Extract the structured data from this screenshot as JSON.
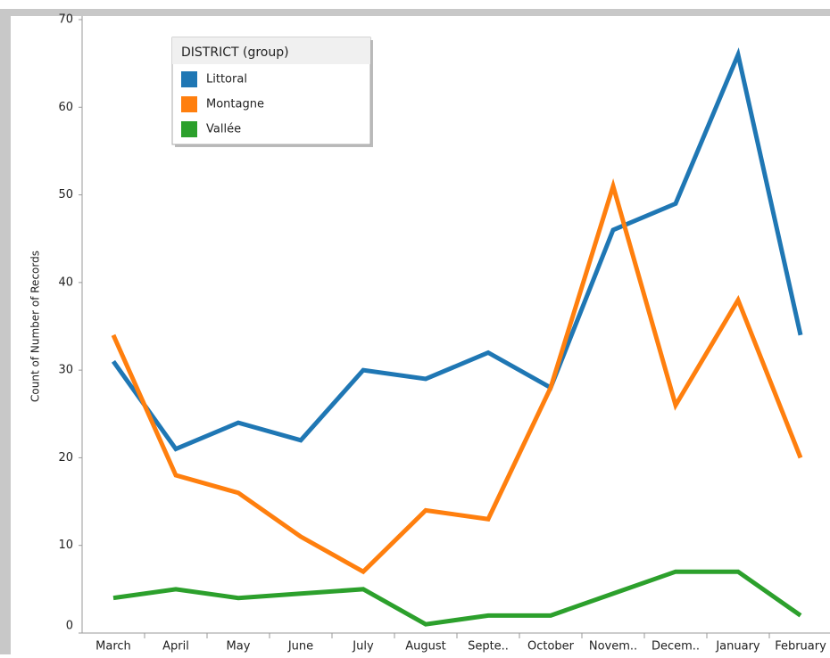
{
  "chart_data": {
    "type": "line",
    "y_label": "Count of Number of Records",
    "legend_title": "DISTRICT (group)",
    "categories": [
      "March",
      "April",
      "May",
      "June",
      "July",
      "August",
      "Septe..",
      "October",
      "Novem..",
      "Decem..",
      "January",
      "February"
    ],
    "series": [
      {
        "name": "Littoral",
        "color": "#1f77b4",
        "values": [
          31,
          21,
          24,
          22,
          30,
          29,
          32,
          28,
          46,
          49,
          66,
          34
        ]
      },
      {
        "name": "Montagne",
        "color": "#ff7f0e",
        "values": [
          34,
          18,
          16,
          11,
          7,
          14,
          13,
          28,
          51,
          26,
          38,
          20
        ]
      },
      {
        "name": "Vallée",
        "color": "#2ca02c",
        "values": [
          4,
          5,
          4,
          4.5,
          5,
          1,
          2,
          2,
          4.5,
          7,
          7,
          2
        ]
      }
    ],
    "ylim": [
      0,
      70
    ],
    "yticks": [
      0,
      10,
      20,
      30,
      40,
      50,
      60,
      70
    ],
    "legend": "upper left"
  }
}
